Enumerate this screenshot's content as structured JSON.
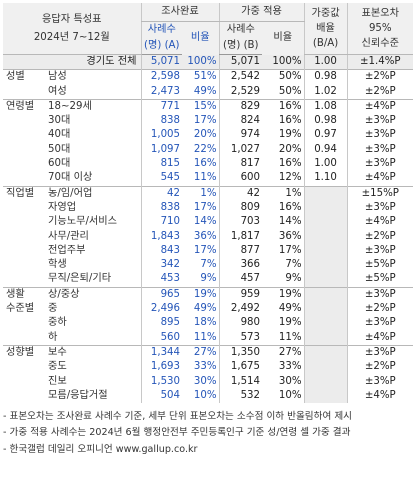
{
  "header": {
    "title_line1": "응답자 특성표",
    "title_line2": "2024년 7~12월",
    "survey_group": "조사완료",
    "weighted_group": "가중 적용",
    "weight_factor_line1": "가중값",
    "weight_factor_line2": "배율",
    "weight_factor_line3": "(B/A)",
    "se_line1": "표본오차",
    "se_line2": "95%",
    "se_line3": "신뢰수준",
    "cases_a_line1": "사례수",
    "cases_a_line2": "(명) (A)",
    "ratio_a": "비율",
    "cases_b_line1": "사례수",
    "cases_b_line2": "(명) (B)",
    "ratio_b": "비율"
  },
  "rows": [
    {
      "group": "",
      "sub": "경기도 전체",
      "a": "5,071",
      "ap": "100%",
      "b": "5,071",
      "bp": "100%",
      "w": "1.00",
      "se": "±1.4%P"
    },
    {
      "group": "성별",
      "sub": "남성",
      "a": "2,598",
      "ap": "51%",
      "b": "2,542",
      "bp": "50%",
      "w": "0.98",
      "se": "±2%P"
    },
    {
      "group": "",
      "sub": "여성",
      "a": "2,473",
      "ap": "49%",
      "b": "2,529",
      "bp": "50%",
      "w": "1.02",
      "se": "±2%P"
    },
    {
      "group": "연령별",
      "sub": "18~29세",
      "a": "771",
      "ap": "15%",
      "b": "829",
      "bp": "16%",
      "w": "1.08",
      "se": "±4%P"
    },
    {
      "group": "",
      "sub": "30대",
      "a": "838",
      "ap": "17%",
      "b": "824",
      "bp": "16%",
      "w": "0.98",
      "se": "±3%P"
    },
    {
      "group": "",
      "sub": "40대",
      "a": "1,005",
      "ap": "20%",
      "b": "974",
      "bp": "19%",
      "w": "0.97",
      "se": "±3%P"
    },
    {
      "group": "",
      "sub": "50대",
      "a": "1,097",
      "ap": "22%",
      "b": "1,027",
      "bp": "20%",
      "w": "0.94",
      "se": "±3%P"
    },
    {
      "group": "",
      "sub": "60대",
      "a": "815",
      "ap": "16%",
      "b": "817",
      "bp": "16%",
      "w": "1.00",
      "se": "±3%P"
    },
    {
      "group": "",
      "sub": "70대 이상",
      "a": "545",
      "ap": "11%",
      "b": "600",
      "bp": "12%",
      "w": "1.10",
      "se": "±4%P"
    },
    {
      "group": "직업별",
      "sub": "농/임/어업",
      "a": "42",
      "ap": "1%",
      "b": "42",
      "bp": "1%",
      "w": "",
      "se": "±15%P"
    },
    {
      "group": "",
      "sub": "자영업",
      "a": "838",
      "ap": "17%",
      "b": "809",
      "bp": "16%",
      "w": "",
      "se": "±3%P"
    },
    {
      "group": "",
      "sub": "기능노무/서비스",
      "a": "710",
      "ap": "14%",
      "b": "703",
      "bp": "14%",
      "w": "",
      "se": "±4%P"
    },
    {
      "group": "",
      "sub": "사무/관리",
      "a": "1,843",
      "ap": "36%",
      "b": "1,817",
      "bp": "36%",
      "w": "",
      "se": "±2%P"
    },
    {
      "group": "",
      "sub": "전업주부",
      "a": "843",
      "ap": "17%",
      "b": "877",
      "bp": "17%",
      "w": "",
      "se": "±3%P"
    },
    {
      "group": "",
      "sub": "학생",
      "a": "342",
      "ap": "7%",
      "b": "366",
      "bp": "7%",
      "w": "",
      "se": "±5%P"
    },
    {
      "group": "",
      "sub": "무직/은퇴/기타",
      "a": "453",
      "ap": "9%",
      "b": "457",
      "bp": "9%",
      "w": "",
      "se": "±5%P"
    },
    {
      "group": "생활",
      "group2": "수준별",
      "sub": "상/중상",
      "a": "965",
      "ap": "19%",
      "b": "959",
      "bp": "19%",
      "w": "",
      "se": "±3%P"
    },
    {
      "group": "",
      "sub": "중",
      "a": "2,496",
      "ap": "49%",
      "b": "2,492",
      "bp": "49%",
      "w": "",
      "se": "±2%P"
    },
    {
      "group": "",
      "sub": "중하",
      "a": "895",
      "ap": "18%",
      "b": "980",
      "bp": "19%",
      "w": "",
      "se": "±3%P"
    },
    {
      "group": "",
      "sub": "하",
      "a": "560",
      "ap": "11%",
      "b": "573",
      "bp": "11%",
      "w": "",
      "se": "±4%P"
    },
    {
      "group": "성향별",
      "sub": "보수",
      "a": "1,344",
      "ap": "27%",
      "b": "1,350",
      "bp": "27%",
      "w": "",
      "se": "±3%P"
    },
    {
      "group": "",
      "sub": "중도",
      "a": "1,693",
      "ap": "33%",
      "b": "1,675",
      "bp": "33%",
      "w": "",
      "se": "±2%P"
    },
    {
      "group": "",
      "sub": "진보",
      "a": "1,530",
      "ap": "30%",
      "b": "1,514",
      "bp": "30%",
      "w": "",
      "se": "±3%P"
    },
    {
      "group": "",
      "sub": "모름/응답거절",
      "a": "504",
      "ap": "10%",
      "b": "532",
      "bp": "10%",
      "w": "",
      "se": "±4%P"
    }
  ],
  "notes": [
    "- 표본오차는 조사완료 사례수 기준, 세부 단위 표본오차는 소수점 이하 반올림하여 제시",
    "- 가중 적용 사례수는 2024년 6월 행정안전부 주민등록인구 기준 성/연령 셀 가중 결과",
    "- 한국갤럽 데일리 오피니언 www.gallup.co.kr"
  ]
}
